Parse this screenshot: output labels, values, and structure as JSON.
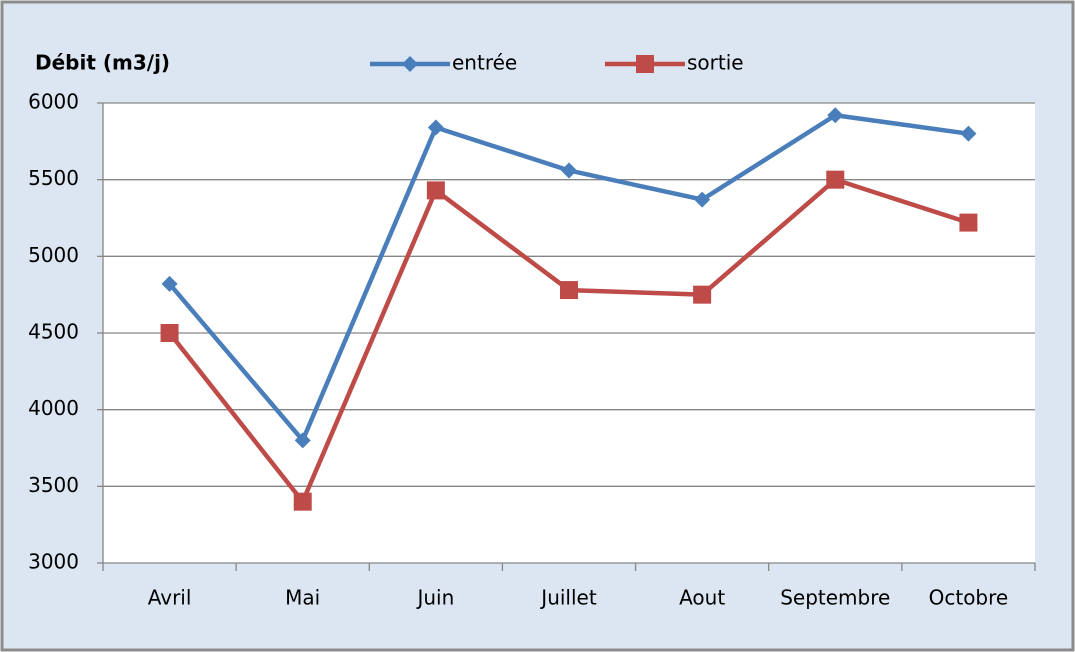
{
  "chart_data": {
    "type": "line",
    "title": "Débit (m3/j)",
    "categories": [
      "Avril",
      "Mai",
      "Juin",
      "Juillet",
      "Aout",
      "Septembre",
      "Octobre"
    ],
    "series": [
      {
        "name": "entrée",
        "color": "#4a7ebb",
        "marker": "diamond",
        "values": [
          4820,
          3800,
          5840,
          5560,
          5370,
          5920,
          5800
        ]
      },
      {
        "name": "sortie",
        "color": "#be4b48",
        "marker": "square",
        "values": [
          4500,
          3400,
          5430,
          4780,
          4750,
          5500,
          5220
        ]
      }
    ],
    "ylim": [
      3000,
      6000
    ],
    "yticks": [
      3000,
      3500,
      4000,
      4500,
      5000,
      5500,
      6000
    ],
    "grid": true,
    "legend": "top"
  }
}
